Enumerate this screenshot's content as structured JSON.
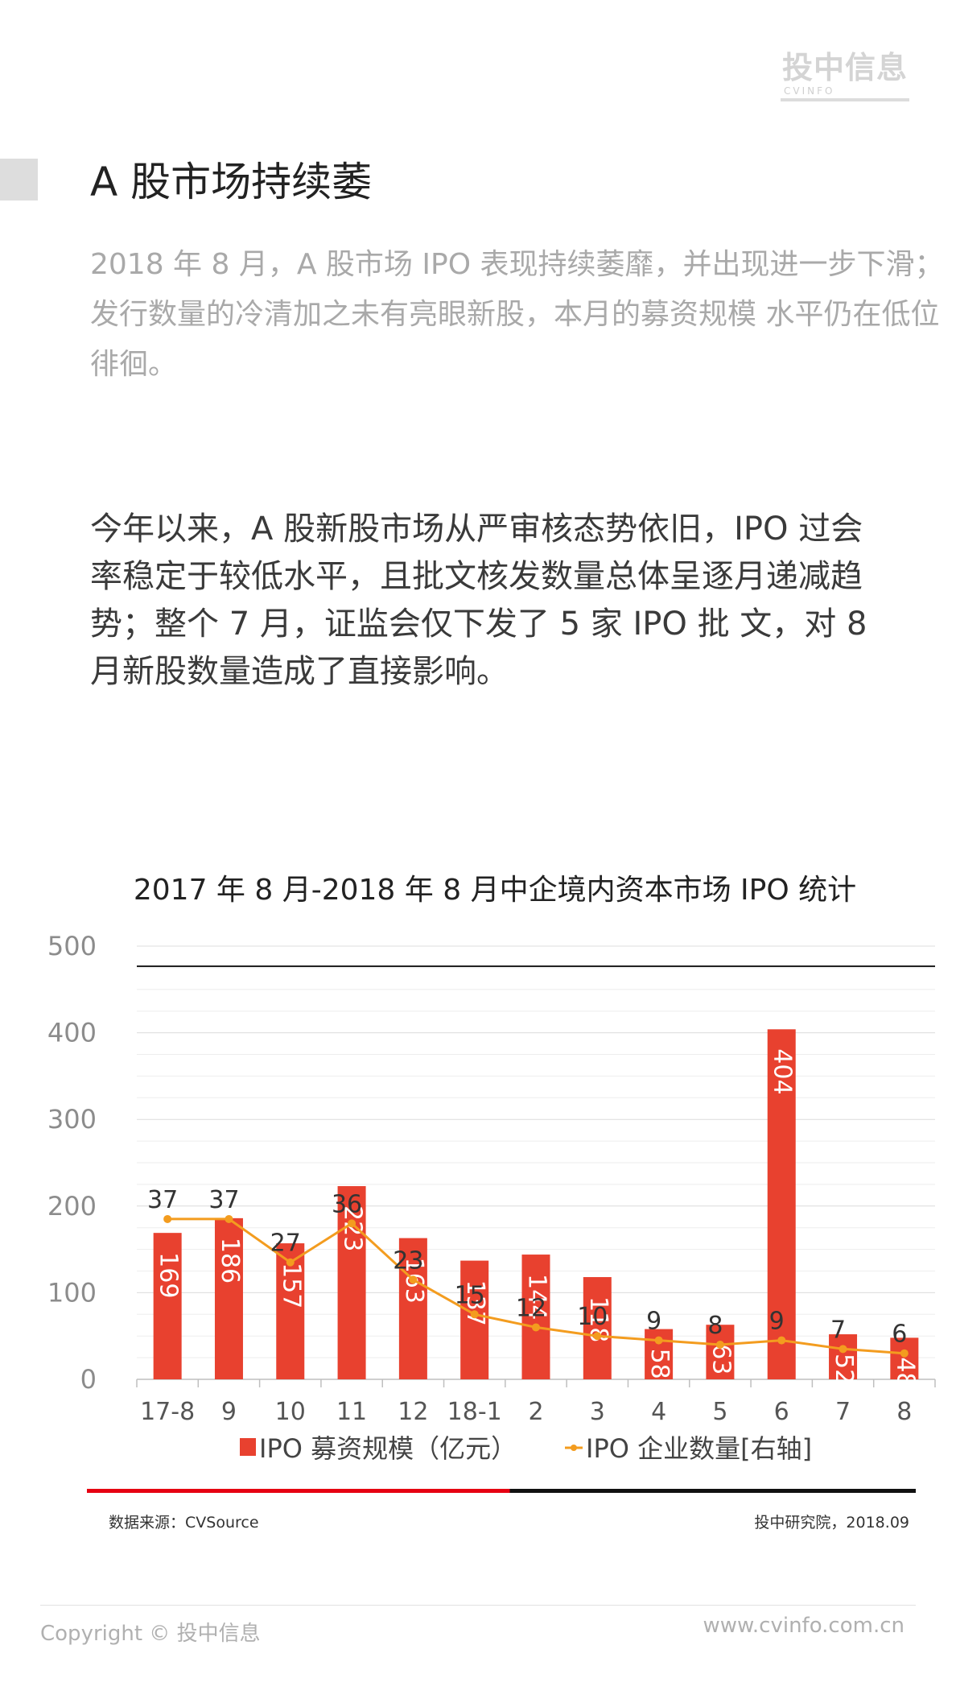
{
  "brand": {
    "logo_text": "投中信息",
    "logo_sub": "CVINFO"
  },
  "section": {
    "title": "A 股市场持续萎"
  },
  "intro": "2018 年 8 月，A 股市场 IPO 表现持续萎靡，并出现进一步下滑；发行数量的冷清加之未有亮眼新股，本月的募资规模 水平仍在低位徘徊。",
  "body": "今年以来，A 股新股市场从严审核态势依旧，IPO 过会率稳定于较低水平，且批文核发数量总体呈逐月递减趋势；整个 7 月，证监会仅下发了 5 家 IPO 批 文，对 8 月新股数量造成了直接影响。",
  "chart_data": {
    "type": "bar",
    "title": "2017 年 8 月-2018 年 8 月中企境内资本市场 IPO 统计",
    "categories": [
      "17-8",
      "9",
      "10",
      "11",
      "12",
      "18-1",
      "2",
      "3",
      "4",
      "5",
      "6",
      "7",
      "8"
    ],
    "series": [
      {
        "name": "IPO 募资规模（亿元）",
        "type": "bar",
        "axis": "left",
        "color": "#e8412f",
        "values": [
          169,
          186,
          157,
          223,
          163,
          137,
          144,
          118,
          58,
          63,
          404,
          52,
          48
        ]
      },
      {
        "name": "IPO 企业数量[右轴]",
        "type": "line",
        "axis": "right",
        "color": "#f39c1f",
        "values": [
          37,
          37,
          27,
          36,
          23,
          15,
          12,
          10,
          9,
          8,
          9,
          7,
          6
        ]
      }
    ],
    "y_ticks": [
      "0",
      "100",
      "200",
      "300",
      "400",
      "500"
    ],
    "ylim": [
      0,
      500
    ],
    "y2lim": [
      0,
      100
    ],
    "legend_position": "bottom",
    "grid": true
  },
  "footer": {
    "source": "数据来源：CVSource",
    "credit": "投中研究院，2018.09",
    "copyright": "Copyright ©  投中信息",
    "website": "www.cvinfo.com.cn"
  }
}
